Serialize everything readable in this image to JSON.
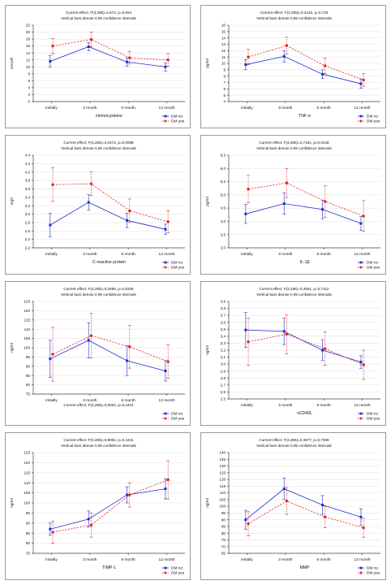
{
  "colors": {
    "dm_no": "#1f2fd0",
    "dm_yes": "#e0262a"
  },
  "chart_data": [
    {
      "type": "line",
      "subtitle1": "Current effect: F(3,285)=2,673, p=0,054",
      "subtitle2": "Vertical bars denote 0,95 confidence intervals",
      "ylabel": "mmol/l",
      "xlabel": "Homocysteine",
      "categories": [
        "Initially",
        "3 month",
        "6 month",
        "12 month"
      ],
      "ylim": [
        0,
        22
      ],
      "yticks": [
        0,
        2,
        4,
        6,
        8,
        10,
        12,
        14,
        16,
        18,
        20,
        22
      ],
      "legend_position": "bottom-right",
      "series": [
        {
          "name": "DM no",
          "color": "#1f2fd0",
          "values": [
            11.6,
            15.8,
            11.4,
            10.0
          ],
          "lower": [
            10.0,
            14.6,
            10.2,
            8.8
          ],
          "upper": [
            13.2,
            17.0,
            12.6,
            11.2
          ]
        },
        {
          "name": "DM yes",
          "color": "#e0262a",
          "values": [
            16.0,
            17.9,
            12.6,
            12.0
          ],
          "lower": [
            13.8,
            15.8,
            10.8,
            10.2
          ],
          "upper": [
            18.2,
            20.0,
            14.4,
            13.8
          ]
        }
      ]
    },
    {
      "type": "line",
      "subtitle1": "Current effect: F(3,285)=0,4415, p=0,723",
      "subtitle2": "Vertical bars denote 0,95 confidence intervals",
      "ylabel": "pg/ml",
      "xlabel": "TNF-α",
      "categories": [
        "Initially",
        "3 month",
        "6 month",
        "12 month"
      ],
      "ylim": [
        4,
        16
      ],
      "yticks": [
        4,
        5,
        6,
        7,
        8,
        9,
        10,
        11,
        12,
        13,
        14,
        15,
        16
      ],
      "legend_position": "bottom-right",
      "series": [
        {
          "name": "DM no",
          "color": "#1f2fd0",
          "values": [
            9.8,
            11.1,
            8.3,
            6.8
          ],
          "lower": [
            9.0,
            10.2,
            7.6,
            6.1
          ],
          "upper": [
            10.6,
            12.0,
            9.0,
            7.5
          ]
        },
        {
          "name": "DM yes",
          "color": "#e0262a",
          "values": [
            11.0,
            12.8,
            9.6,
            7.4
          ],
          "lower": [
            9.8,
            11.5,
            8.4,
            6.4
          ],
          "upper": [
            12.2,
            14.1,
            10.8,
            8.4
          ]
        }
      ]
    },
    {
      "type": "line",
      "subtitle1": "Current effect: F(3,285)=4,0472, p=0,0098",
      "subtitle2": "Vertical bars denote 0,95 confidence intervals",
      "ylabel": "mg/l",
      "xlabel": "C-reactive protein",
      "categories": [
        "Initially",
        "3 month",
        "6 month",
        "12 month"
      ],
      "ylim": [
        2.2,
        4.4
      ],
      "yticks": [
        2.2,
        2.4,
        2.6,
        2.8,
        3.0,
        3.2,
        3.4,
        3.6,
        3.8,
        4.0,
        4.2,
        4.4
      ],
      "legend_position": "bottom-right",
      "series": [
        {
          "name": "DM no",
          "color": "#1f2fd0",
          "values": [
            2.74,
            3.28,
            2.85,
            2.64
          ],
          "lower": [
            2.46,
            3.1,
            2.68,
            2.52
          ],
          "upper": [
            3.02,
            3.46,
            3.02,
            2.76
          ]
        },
        {
          "name": "DM yes",
          "color": "#e0262a",
          "values": [
            3.7,
            3.72,
            3.08,
            2.82
          ],
          "lower": [
            3.3,
            3.44,
            2.8,
            2.56
          ],
          "upper": [
            4.1,
            4.0,
            3.36,
            3.08
          ]
        }
      ]
    },
    {
      "type": "line",
      "subtitle1": "Current effect: F(3,285)=2,7161, p=0,0448",
      "subtitle2": "Vertical bars denote 0,95 confidence intervals",
      "ylabel": "pg/ml",
      "xlabel": "IL-1β",
      "categories": [
        "Initially",
        "3 month",
        "6 month",
        "12 month"
      ],
      "ylim": [
        3.0,
        6.5
      ],
      "yticks": [
        3.0,
        3.5,
        4.0,
        4.5,
        5.0,
        5.5,
        6.0,
        6.5
      ],
      "legend_position": "bottom-right",
      "series": [
        {
          "name": "DM no",
          "color": "#1f2fd0",
          "values": [
            4.28,
            4.67,
            4.45,
            3.92
          ],
          "lower": [
            3.92,
            4.27,
            4.1,
            3.66
          ],
          "upper": [
            4.64,
            5.07,
            4.8,
            4.18
          ]
        },
        {
          "name": "DM yes",
          "color": "#e0262a",
          "values": [
            5.22,
            5.45,
            4.75,
            4.2
          ],
          "lower": [
            4.7,
            4.9,
            4.15,
            3.62
          ],
          "upper": [
            5.74,
            6.0,
            5.35,
            4.78
          ]
        }
      ]
    },
    {
      "type": "line",
      "subtitle1": "Current effect: F(3,285)=0,2899, p=0,8329",
      "subtitle2": "Vertical bars denote 0,95 confidence intervals",
      "bottom_note": "Current effect: F(3,285)=0,8954, p=0,4441",
      "ylabel": "ng/ml",
      "xlabel": "",
      "categories": [
        "Initially",
        "3 month",
        "6 month",
        "12 month"
      ],
      "ylim": [
        75,
        125
      ],
      "yticks": [
        75,
        80,
        85,
        90,
        95,
        100,
        105,
        110,
        115,
        120,
        125
      ],
      "legend_position": "bottom-right",
      "series": [
        {
          "name": "DM no",
          "color": "#1f2fd0",
          "values": [
            94,
            104,
            93,
            87.5
          ],
          "lower": [
            84,
            94.5,
            85,
            82
          ],
          "upper": [
            104,
            113.5,
            101,
            93
          ]
        },
        {
          "name": "DM yes",
          "color": "#e0262a",
          "values": [
            96.5,
            106.5,
            100.5,
            92.5
          ],
          "lower": [
            82,
            94.5,
            89,
            83.5
          ],
          "upper": [
            111,
            118.5,
            112,
            101.5
          ]
        }
      ]
    },
    {
      "type": "line",
      "subtitle1": "Current effect: F(3,285)=0,4591, p=0,7112",
      "subtitle2": "Vertical bars denote 0,95 confidence intervals",
      "ylabel": "ng/ml",
      "xlabel": "sCD40L",
      "categories": [
        "Initially",
        "3 month",
        "6 month",
        "12 month"
      ],
      "ylim": [
        2.5,
        3.9
      ],
      "yticks": [
        2.5,
        2.6,
        2.7,
        2.8,
        2.9,
        3.0,
        3.1,
        3.2,
        3.3,
        3.4,
        3.5,
        3.6,
        3.7,
        3.8,
        3.9
      ],
      "legend_position": "bottom-right",
      "series": [
        {
          "name": "DM no",
          "color": "#1f2fd0",
          "values": [
            3.49,
            3.47,
            3.2,
            3.03
          ],
          "lower": [
            3.24,
            3.28,
            3.05,
            2.94
          ],
          "upper": [
            3.74,
            3.66,
            3.35,
            3.12
          ]
        },
        {
          "name": "DM yes",
          "color": "#e0262a",
          "values": [
            3.32,
            3.43,
            3.22,
            2.99
          ],
          "lower": [
            2.98,
            3.15,
            2.98,
            2.78
          ],
          "upper": [
            3.66,
            3.71,
            3.46,
            3.2
          ]
        }
      ]
    },
    {
      "type": "line",
      "subtitle1": "Current effect: F(3,285)=0,8954, p=0,4441",
      "subtitle2": "Vertical bars denote 0,95 confidence intervals",
      "ylabel": "ng/ml",
      "xlabel": "TIMP-1",
      "categories": [
        "Initially",
        "3 month",
        "6 month",
        "12 month"
      ],
      "ylim": [
        75,
        125
      ],
      "yticks": [
        75,
        80,
        85,
        90,
        95,
        100,
        105,
        110,
        115,
        120,
        125
      ],
      "legend_position": "bottom-right",
      "series": [
        {
          "name": "DM no",
          "color": "#1f2fd0",
          "values": [
            87,
            92,
            104,
            107
          ],
          "lower": [
            84,
            88,
            100,
            102
          ],
          "upper": [
            90,
            96,
            108,
            112
          ]
        },
        {
          "name": "DM yes",
          "color": "#e0262a",
          "values": [
            85.5,
            89,
            104,
            111.5
          ],
          "lower": [
            80,
            83,
            98,
            102
          ],
          "upper": [
            91,
            95,
            110,
            121
          ]
        }
      ]
    },
    {
      "type": "line",
      "subtitle1": "Current effect: F(3,285)=0,4877, p=0,7008",
      "subtitle2": "Vertical bars denote 0,95 confidence intervals",
      "ylabel": "ng/ml",
      "xlabel": "MMP",
      "categories": [
        "Initially",
        "3 month",
        "6 month",
        "12 month"
      ],
      "ylim": [
        65,
        140
      ],
      "yticks": [
        65,
        70,
        75,
        80,
        85,
        90,
        95,
        100,
        105,
        110,
        115,
        120,
        125,
        130,
        135,
        140
      ],
      "legend_position": "bottom-right",
      "series": [
        {
          "name": "DM no",
          "color": "#1f2fd0",
          "values": [
            90,
            113,
            101,
            92
          ],
          "lower": [
            83,
            105,
            94,
            86
          ],
          "upper": [
            97,
            121,
            108,
            98
          ]
        },
        {
          "name": "DM yes",
          "color": "#e0262a",
          "values": [
            87,
            104,
            92,
            84
          ],
          "lower": [
            78,
            94,
            84,
            77
          ],
          "upper": [
            96,
            114,
            100,
            91
          ]
        }
      ]
    }
  ]
}
